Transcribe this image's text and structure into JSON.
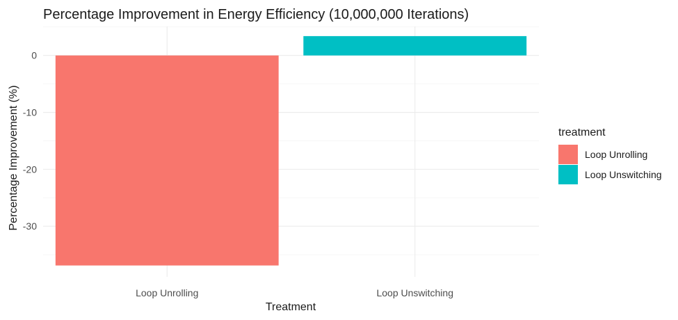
{
  "chart_data": {
    "type": "bar",
    "title": "Percentage Improvement in Energy Efficiency (10,000,000 Iterations)",
    "xlabel": "Treatment",
    "ylabel": "Percentage Improvement (%)",
    "categories": [
      "Loop Unrolling",
      "Loop Unswitching"
    ],
    "values": [
      -36.9,
      3.4
    ],
    "colors": [
      "#F8766D",
      "#00BFC4"
    ],
    "ylim": [
      -38.9,
      5.1
    ],
    "yticks": [
      0,
      -10,
      -20,
      -30
    ],
    "grid": true,
    "legend": {
      "title": "treatment",
      "position": "right",
      "entries": [
        "Loop Unrolling",
        "Loop Unswitching"
      ]
    }
  }
}
